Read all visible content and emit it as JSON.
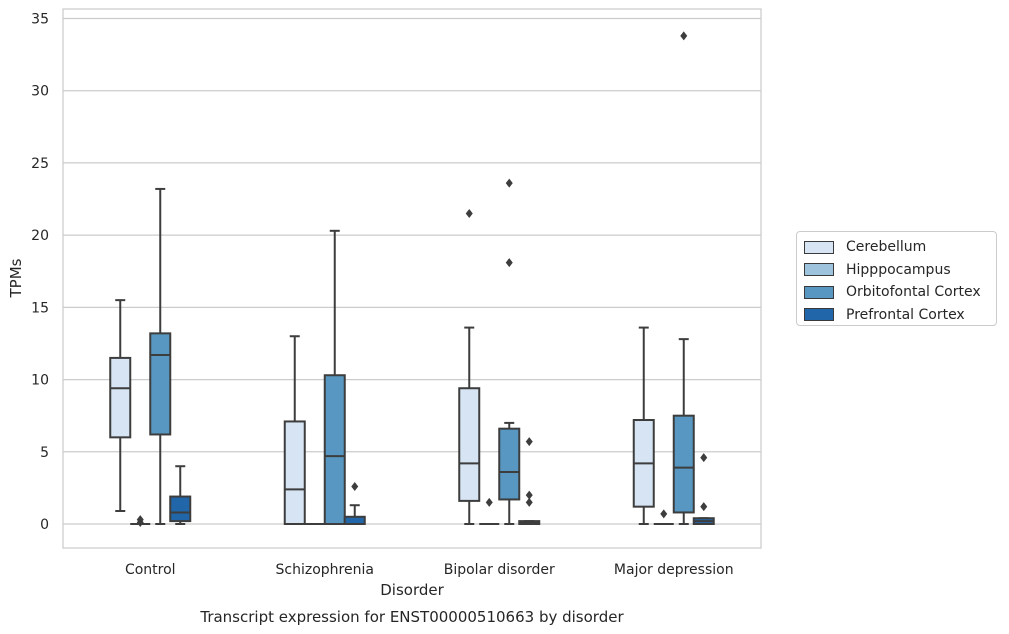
{
  "chart_data": {
    "type": "box",
    "title": "",
    "caption": "Transcript expression for ENST00000510663 by disorder",
    "xlabel": "Disorder",
    "ylabel": "TPMs",
    "ylim": [
      -1.7,
      35.6
    ],
    "yticks": [
      0,
      5,
      10,
      15,
      20,
      25,
      30,
      35
    ],
    "grid": "horizontal",
    "legend_position": "right",
    "categories": [
      "Control",
      "Schizophrenia",
      "Bipolar disorder",
      "Major depression"
    ],
    "series": [
      {
        "name": "Cerebellum",
        "color": "#d6e4f3",
        "boxes": [
          {
            "whislo": 0.9,
            "q1": 6.0,
            "med": 9.4,
            "q3": 11.5,
            "whishi": 15.5,
            "fliers": []
          },
          {
            "whislo": 0.0,
            "q1": 0.0,
            "med": 2.4,
            "q3": 7.1,
            "whishi": 13.0,
            "fliers": []
          },
          {
            "whislo": 0.0,
            "q1": 1.6,
            "med": 4.2,
            "q3": 9.4,
            "whishi": 13.6,
            "fliers": [
              21.5
            ]
          },
          {
            "whislo": 0.0,
            "q1": 1.2,
            "med": 4.2,
            "q3": 7.2,
            "whishi": 13.6,
            "fliers": []
          }
        ]
      },
      {
        "name": "Hipppocampus",
        "color": "#9dc3dd",
        "boxes": [
          {
            "whislo": 0.0,
            "q1": 0.0,
            "med": 0.0,
            "q3": 0.0,
            "whishi": 0.0,
            "fliers": [
              0.1,
              0.3
            ]
          },
          {
            "whislo": 0.0,
            "q1": 0.0,
            "med": 0.0,
            "q3": 0.0,
            "whishi": 0.0,
            "fliers": []
          },
          {
            "whislo": 0.0,
            "q1": 0.0,
            "med": 0.0,
            "q3": 0.0,
            "whishi": 0.0,
            "fliers": [
              1.5
            ]
          },
          {
            "whislo": 0.0,
            "q1": 0.0,
            "med": 0.0,
            "q3": 0.0,
            "whishi": 0.0,
            "fliers": [
              0.7
            ]
          }
        ]
      },
      {
        "name": "Orbitofontal Cortex",
        "color": "#5797c1",
        "boxes": [
          {
            "whislo": 0.0,
            "q1": 6.2,
            "med": 11.7,
            "q3": 13.2,
            "whishi": 23.2,
            "fliers": []
          },
          {
            "whislo": 0.0,
            "q1": 0.0,
            "med": 4.7,
            "q3": 10.3,
            "whishi": 20.3,
            "fliers": []
          },
          {
            "whislo": 0.0,
            "q1": 1.7,
            "med": 3.6,
            "q3": 6.6,
            "whishi": 7.0,
            "fliers": [
              18.1,
              23.6
            ]
          },
          {
            "whislo": 0.0,
            "q1": 0.8,
            "med": 3.9,
            "q3": 7.5,
            "whishi": 12.8,
            "fliers": [
              33.8
            ]
          }
        ]
      },
      {
        "name": "Prefrontal Cortex",
        "color": "#2166a8",
        "boxes": [
          {
            "whislo": 0.0,
            "q1": 0.2,
            "med": 0.8,
            "q3": 1.9,
            "whishi": 4.0,
            "fliers": []
          },
          {
            "whislo": 0.0,
            "q1": 0.0,
            "med": 0.0,
            "q3": 0.5,
            "whishi": 1.3,
            "fliers": [
              2.6
            ]
          },
          {
            "whislo": 0.0,
            "q1": 0.0,
            "med": 0.1,
            "q3": 0.2,
            "whishi": 0.2,
            "fliers": [
              1.5,
              2.0,
              5.7
            ]
          },
          {
            "whislo": 0.0,
            "q1": 0.0,
            "med": 0.2,
            "q3": 0.4,
            "whishi": 0.4,
            "fliers": [
              1.2,
              4.6
            ]
          }
        ]
      }
    ]
  }
}
